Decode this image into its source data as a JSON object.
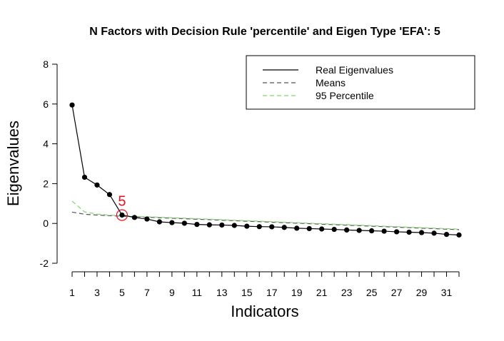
{
  "chart_data": {
    "type": "line",
    "title": "N Factors with Decision Rule 'percentile' and Eigen Type 'EFA': 5",
    "xlabel": "Indicators",
    "ylabel": "Eigenvalues",
    "xlim": [
      1,
      32
    ],
    "ylim": [
      -2,
      8
    ],
    "x_ticks": [
      1,
      3,
      5,
      7,
      9,
      11,
      13,
      15,
      17,
      19,
      21,
      23,
      25,
      27,
      29,
      31
    ],
    "y_ticks": [
      -2,
      0,
      2,
      4,
      6,
      8
    ],
    "x": [
      1,
      2,
      3,
      4,
      5,
      6,
      7,
      8,
      9,
      10,
      11,
      12,
      13,
      14,
      15,
      16,
      17,
      18,
      19,
      20,
      21,
      22,
      23,
      24,
      25,
      26,
      27,
      28,
      29,
      30,
      31,
      32
    ],
    "series": [
      {
        "name": "Real Eigenvalues",
        "color": "#000000",
        "style": "solid-with-points",
        "values": [
          5.95,
          2.32,
          1.93,
          1.45,
          0.42,
          0.3,
          0.22,
          0.08,
          0.04,
          0.01,
          -0.05,
          -0.07,
          -0.08,
          -0.1,
          -0.14,
          -0.16,
          -0.17,
          -0.2,
          -0.24,
          -0.26,
          -0.28,
          -0.3,
          -0.33,
          -0.35,
          -0.37,
          -0.39,
          -0.42,
          -0.44,
          -0.46,
          -0.49,
          -0.55,
          -0.58
        ]
      },
      {
        "name": "Means",
        "color": "#555555",
        "style": "dashed",
        "values": [
          0.57,
          0.46,
          0.42,
          0.39,
          0.36,
          0.34,
          0.31,
          0.29,
          0.26,
          0.24,
          0.21,
          0.19,
          0.16,
          0.14,
          0.11,
          0.09,
          0.06,
          0.04,
          0.01,
          -0.01,
          -0.04,
          -0.06,
          -0.09,
          -0.11,
          -0.14,
          -0.16,
          -0.19,
          -0.21,
          -0.24,
          -0.26,
          -0.29,
          -0.31
        ]
      },
      {
        "name": "95 Percentile",
        "color": "#7fd66a",
        "style": "dashed",
        "values": [
          1.12,
          0.58,
          0.47,
          0.42,
          0.39,
          0.36,
          0.34,
          0.31,
          0.29,
          0.26,
          0.24,
          0.21,
          0.19,
          0.16,
          0.14,
          0.11,
          0.09,
          0.06,
          0.04,
          0.01,
          -0.01,
          -0.04,
          -0.06,
          -0.09,
          -0.11,
          -0.14,
          -0.16,
          -0.19,
          -0.21,
          -0.24,
          -0.26,
          -0.29
        ]
      }
    ],
    "annotation": {
      "label": "5",
      "x": 5,
      "y": 0.42,
      "color": "#e8101a"
    },
    "legend": {
      "placement": "top-right",
      "entries": [
        "Real Eigenvalues",
        "Means",
        "95 Percentile"
      ]
    },
    "grid": false
  }
}
